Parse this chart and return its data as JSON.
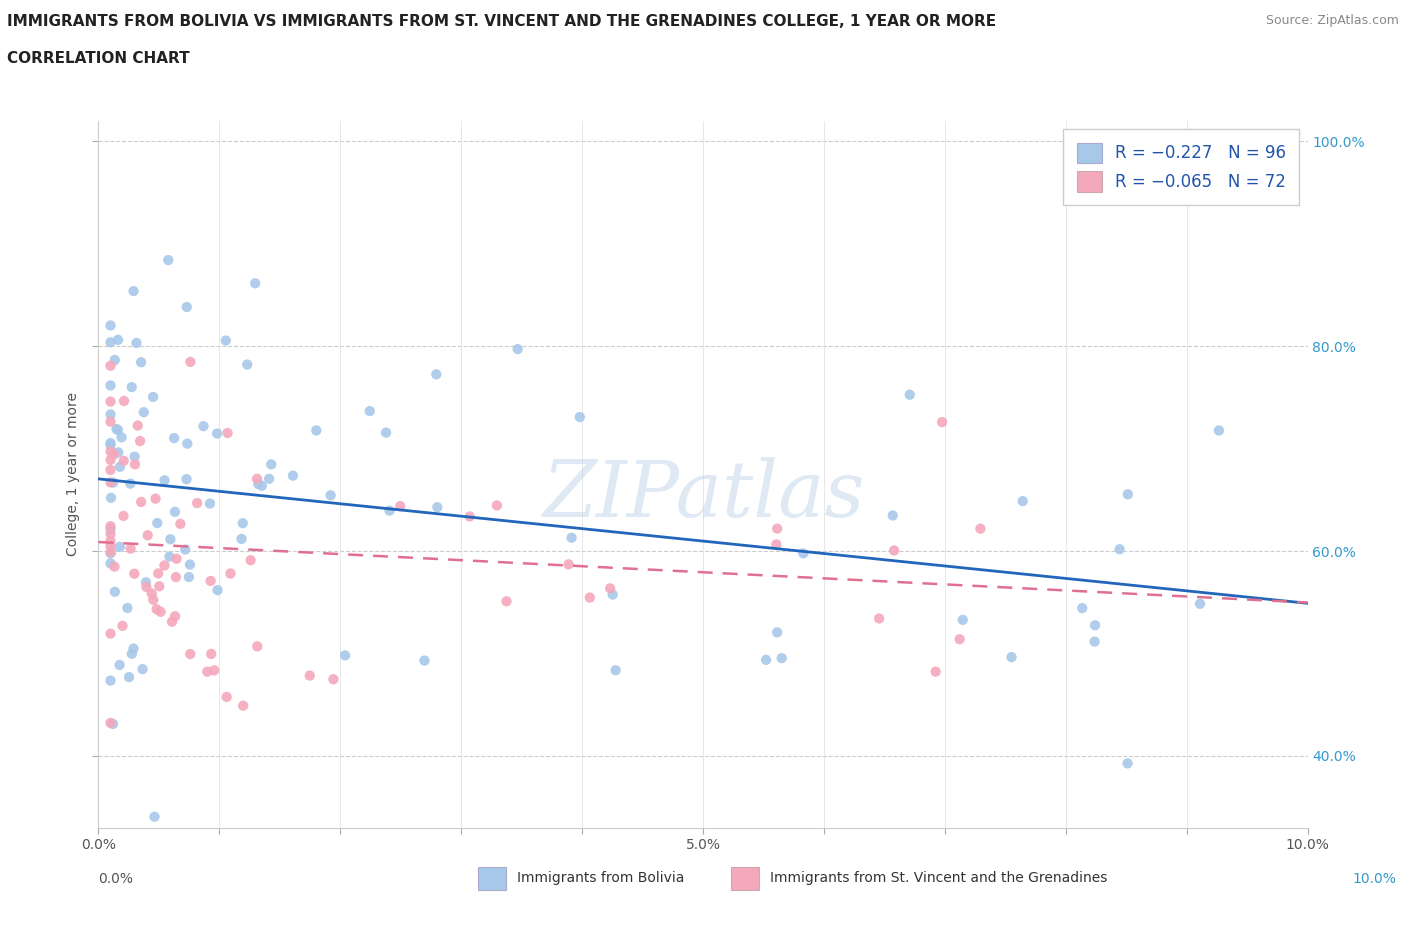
{
  "title_line1": "IMMIGRANTS FROM BOLIVIA VS IMMIGRANTS FROM ST. VINCENT AND THE GRENADINES COLLEGE, 1 YEAR OR MORE",
  "title_line2": "CORRELATION CHART",
  "source_text": "Source: ZipAtlas.com",
  "ylabel": "College, 1 year or more",
  "xlim": [
    0.0,
    0.1
  ],
  "ylim": [
    0.33,
    1.02
  ],
  "bolivia_color": "#a8c8ea",
  "stv_color": "#f4a8bc",
  "bolivia_line_color": "#2266bb",
  "stv_line_color": "#e07090",
  "legend_label_bolivia": "R = −0.227   N = 96",
  "legend_label_stv": "R = −0.065   N = 72",
  "bottom_legend_bolivia": "Immigrants from Bolivia",
  "bottom_legend_stv": "Immigrants from St. Vincent and the Grenadines",
  "watermark": "ZIPatlas",
  "bolivia_seed": 42,
  "stv_seed": 17,
  "bolivia_N": 96,
  "stv_N": 72,
  "bolivia_R": -0.227,
  "stv_R": -0.065,
  "title_fontsize": 11,
  "axis_fontsize": 10,
  "legend_fontsize": 12
}
